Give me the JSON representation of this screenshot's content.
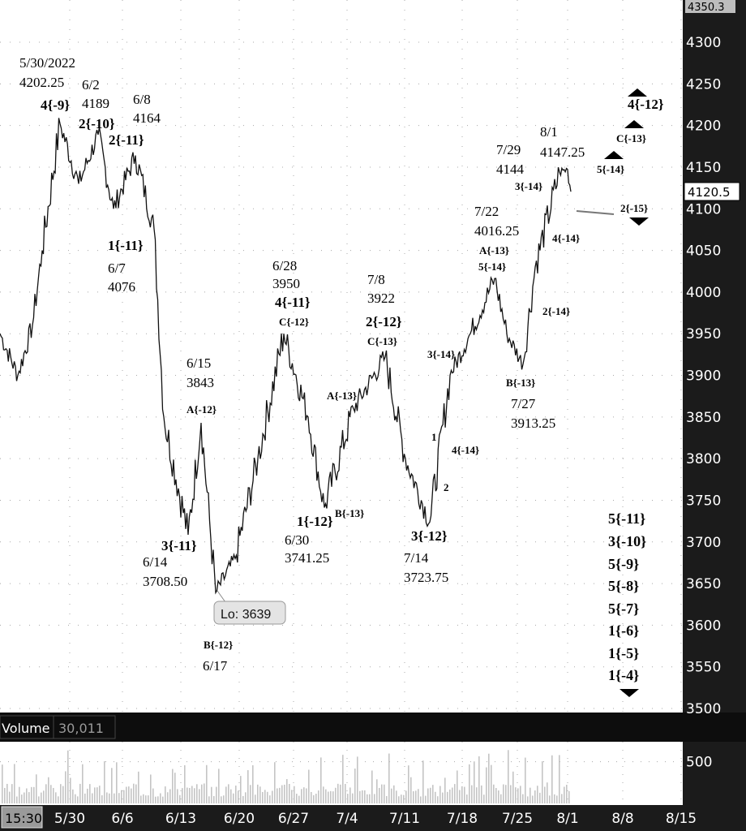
{
  "top_price_tag": "4350.3",
  "last_price_tag": "4120.5",
  "lo_callout": "Lo: 3639",
  "volume_label": "Volume",
  "volume_value": "30,011",
  "time_badge": "15:30",
  "chart_data": {
    "type": "line",
    "ylim": [
      3500,
      4350
    ],
    "y_ticks": [
      "4300",
      "4250",
      "4200",
      "4150",
      "4100",
      "4050",
      "4000",
      "3950",
      "3900",
      "3850",
      "3800",
      "3750",
      "3700",
      "3650",
      "3600",
      "3550",
      "3500"
    ],
    "x_ticks": [
      "5/30",
      "6/6",
      "6/13",
      "6/20",
      "6/27",
      "7/4",
      "7/11",
      "7/18",
      "7/25",
      "8/1",
      "8/8",
      "8/15"
    ],
    "volume_ticks": [
      "500"
    ],
    "volume_ylim": [
      0,
      700
    ],
    "series": [
      {
        "values": [
          3950,
          3900,
          3960,
          4050,
          4202.25,
          4130,
          4189,
          4100,
          4164,
          4076,
          3850,
          3708.5,
          3843,
          3639,
          3680,
          3800,
          3950,
          3850,
          3741.25,
          3860,
          3922,
          3800,
          3723.75,
          3900,
          3950,
          4016.25,
          3950,
          3913.25,
          4030,
          4144,
          4147.25,
          4120.5
        ]
      }
    ],
    "annotations": {
      "dates": [
        {
          "key": "a1",
          "lines": [
            "5/30/2022",
            "4202.25"
          ]
        },
        {
          "key": "a2",
          "lines": [
            "6/2",
            "4189"
          ]
        },
        {
          "key": "a3",
          "lines": [
            "6/8",
            "4164"
          ]
        },
        {
          "key": "a4",
          "lines": [
            "6/7",
            "4076"
          ]
        },
        {
          "key": "a5",
          "lines": [
            "6/15",
            "3843"
          ]
        },
        {
          "key": "a6",
          "lines": [
            "6/14",
            "3708.50"
          ]
        },
        {
          "key": "a7",
          "lines": [
            "6/17"
          ]
        },
        {
          "key": "a8",
          "lines": [
            "6/28",
            "3950"
          ]
        },
        {
          "key": "a9",
          "lines": [
            "6/30",
            "3741.25"
          ]
        },
        {
          "key": "a10",
          "lines": [
            "7/8",
            "3922"
          ]
        },
        {
          "key": "a11",
          "lines": [
            "7/14",
            "3723.75"
          ]
        },
        {
          "key": "a12",
          "lines": [
            "7/22",
            "4016.25"
          ]
        },
        {
          "key": "a13",
          "lines": [
            "7/29",
            "4144"
          ]
        },
        {
          "key": "a14",
          "lines": [
            "8/1",
            "4147.25"
          ]
        },
        {
          "key": "a15",
          "lines": [
            "7/27",
            "3913.25"
          ]
        }
      ],
      "waves": [
        "4{-9}",
        "2{-10}",
        "2{-11}",
        "1{-11}",
        "A{-12}",
        "3{-11}",
        "B{-12}",
        "4{-11}",
        "C{-12}",
        "A{-13}",
        "1{-12}",
        "B{-13}",
        "2{-12}",
        "C{-13}",
        "1",
        "2",
        "3{-12}",
        "3{-14}",
        "4{-14}",
        "A{-13}",
        "5{-14}",
        "B{-13}",
        "2{-14}",
        "3{-14}",
        "4{-14}",
        "5{-14}",
        "C{-13}",
        "4{-12}",
        "2{-15}"
      ],
      "stack": [
        "5{-11}",
        "3{-10}",
        "5{-9}",
        "5{-8}",
        "5{-7}",
        "1{-6}",
        "1{-5}",
        "1{-4}"
      ]
    }
  }
}
